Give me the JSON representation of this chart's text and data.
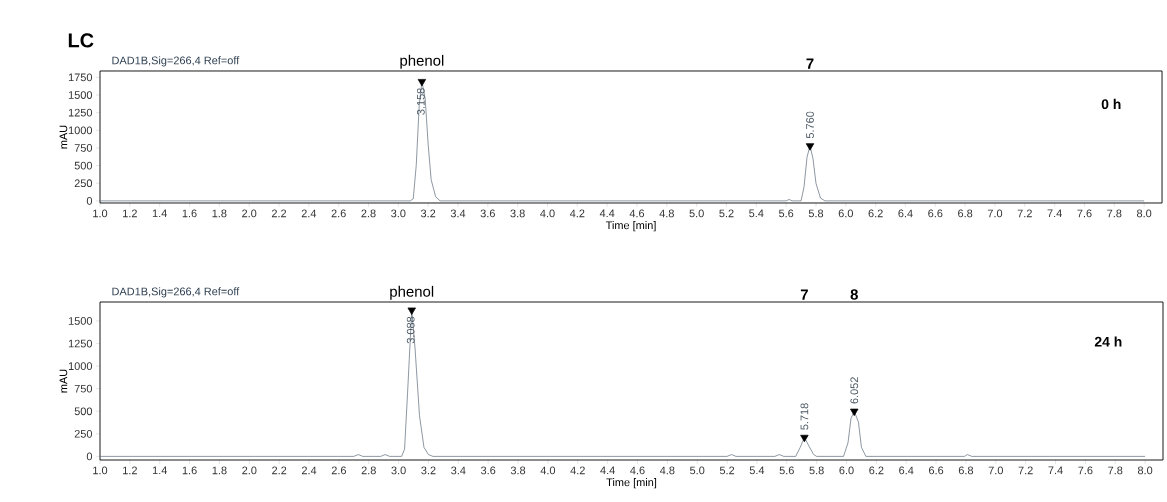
{
  "chart_data": [
    {
      "type": "line",
      "title": "LC",
      "subtitle": "DAD1B,Sig=266,4  Ref=off",
      "xlabel": "Time [min]",
      "ylabel": "mAU",
      "xlim": [
        1.0,
        8.12
      ],
      "ylim": [
        -30,
        1840
      ],
      "xticks": [
        {
          "value": 1,
          "label": "1.0"
        },
        1.2,
        1.4,
        1.6,
        1.8,
        {
          "value": 2,
          "label": "2.0"
        },
        2.2,
        2.4,
        2.6,
        2.8,
        {
          "value": 3,
          "label": "3.0"
        },
        3.2,
        3.4,
        3.6,
        3.8,
        {
          "value": 4,
          "label": "4.0"
        },
        4.2,
        4.4,
        4.6,
        4.8,
        {
          "value": 5,
          "label": "5.0"
        },
        5.2,
        5.4,
        5.6,
        5.8,
        {
          "value": 6,
          "label": "6.0"
        },
        6.2,
        6.4,
        6.6,
        6.8,
        {
          "value": 7,
          "label": "7.0"
        },
        7.2,
        7.4,
        7.6,
        7.8,
        {
          "value": 8,
          "label": "8.0"
        }
      ],
      "yticks": [
        0,
        250,
        500,
        750,
        1000,
        1250,
        1500,
        1750
      ],
      "marker": "none",
      "line_style": "solid",
      "series": [
        {
          "color": "#5b6b7a",
          "x": [
            1.0,
            3.08,
            3.1,
            3.12,
            3.14,
            3.158,
            3.18,
            3.2,
            3.22,
            3.25,
            3.28,
            5.6,
            5.62,
            5.64,
            5.7,
            5.72,
            5.74,
            5.76,
            5.78,
            5.8,
            5.83,
            5.86,
            8.0
          ],
          "values": [
            0,
            0,
            30,
            500,
            1350,
            1690,
            1450,
            800,
            300,
            60,
            0,
            0,
            20,
            0,
            0,
            200,
            620,
            780,
            600,
            250,
            40,
            0,
            0
          ]
        },
        {
          "type": "scatter",
          "color": "#000000",
          "marker": "triangle",
          "x": [
            3.158,
            5.76
          ],
          "values": [
            1690,
            780
          ]
        }
      ],
      "annotations": [
        {
          "text": "3.158",
          "x": 3.158,
          "y": 1690
        },
        {
          "text": "5.760",
          "x": 5.76,
          "y": 780
        },
        "phenol",
        "7",
        "0 h"
      ]
    },
    {
      "type": "line",
      "subtitle": "DAD1B,Sig=266,4  Ref=off",
      "xlabel": "Time [min]",
      "ylabel": "mAU",
      "xlim": [
        1.0,
        8.12
      ],
      "ylim": [
        -40,
        1710
      ],
      "xticks": [
        {
          "value": 1,
          "label": "1.0"
        },
        1.2,
        1.4,
        1.6,
        1.8,
        {
          "value": 2,
          "label": "2.0"
        },
        2.2,
        2.4,
        2.6,
        2.8,
        {
          "value": 3,
          "label": "3.0"
        },
        3.2,
        3.4,
        3.6,
        3.8,
        {
          "value": 4,
          "label": "4.0"
        },
        4.2,
        4.4,
        4.6,
        4.8,
        {
          "value": 5,
          "label": "5.0"
        },
        5.2,
        5.4,
        5.6,
        5.8,
        {
          "value": 6,
          "label": "6.0"
        },
        6.2,
        6.4,
        6.6,
        6.8,
        {
          "value": 7,
          "label": "7.0"
        },
        7.2,
        7.4,
        7.6,
        7.8,
        {
          "value": 8,
          "label": "8.0"
        }
      ],
      "yticks": [
        0,
        250,
        500,
        750,
        1000,
        1250,
        1500
      ],
      "marker": "none",
      "line_style": "solid",
      "series": [
        {
          "color": "#5b6b7a",
          "x": [
            1.0,
            2.7,
            2.73,
            2.76,
            2.88,
            2.91,
            2.94,
            3.02,
            3.04,
            3.06,
            3.088,
            3.11,
            3.14,
            3.17,
            3.2,
            3.23,
            5.2,
            5.23,
            5.26,
            5.52,
            5.55,
            5.58,
            5.66,
            5.69,
            5.718,
            5.75,
            5.78,
            5.8,
            5.98,
            6.01,
            6.03,
            6.052,
            6.08,
            6.1,
            6.13,
            6.79,
            6.81,
            6.84,
            8.0
          ],
          "values": [
            0,
            0,
            20,
            0,
            0,
            20,
            0,
            0,
            80,
            700,
            1620,
            1200,
            450,
            100,
            20,
            0,
            0,
            20,
            0,
            0,
            20,
            0,
            0,
            100,
            210,
            110,
            20,
            0,
            0,
            150,
            420,
            500,
            380,
            100,
            0,
            0,
            20,
            0,
            0
          ]
        },
        {
          "type": "scatter",
          "color": "#000000",
          "marker": "triangle",
          "x": [
            3.088,
            5.718,
            6.052
          ],
          "values": [
            1620,
            210,
            500
          ]
        }
      ],
      "annotations": [
        {
          "text": "3.088",
          "x": 3.088,
          "y": 1620
        },
        {
          "text": "5.718",
          "x": 5.718,
          "y": 210
        },
        {
          "text": "6.052",
          "x": 6.052,
          "y": 500
        },
        "phenol",
        "7",
        "8",
        "24 h"
      ]
    }
  ]
}
